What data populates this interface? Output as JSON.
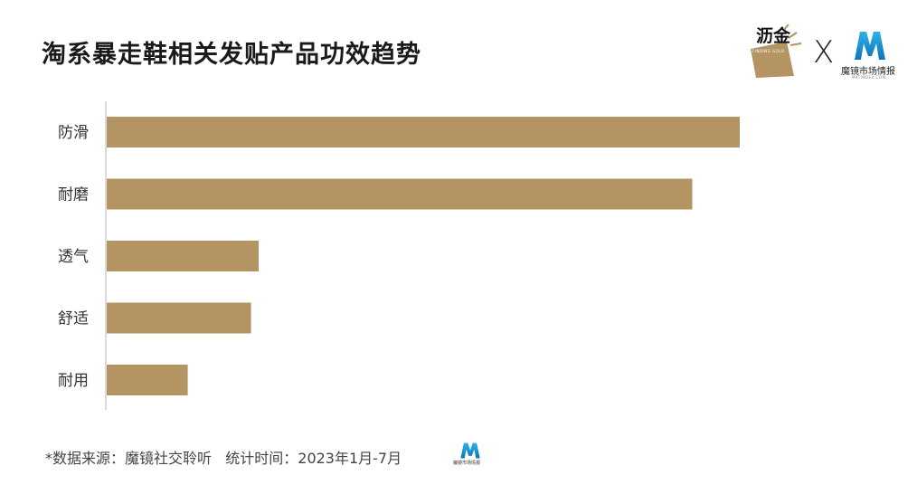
{
  "title": "淘系暴走鞋相关发贴产品功效趋势",
  "logos": {
    "partner_name": "沥金",
    "partner_sub": "FINDING GOLD",
    "separator": "X",
    "brand_name": "魔镜市场情报",
    "brand_sub": "MKTINDEX.COM"
  },
  "footer": {
    "source": "*数据来源：魔镜社交聆听   统计时间：2023年1月-7月"
  },
  "colors": {
    "bar": "#b39462",
    "axis": "#cfcfcf",
    "brand_blue": "#1f9fd4",
    "gold": "#b39462"
  },
  "chart_data": {
    "type": "bar",
    "orientation": "horizontal",
    "title": "淘系暴走鞋相关发贴产品功效趋势",
    "categories": [
      "防滑",
      "耐磨",
      "透气",
      "舒适",
      "耐用"
    ],
    "values": [
      100,
      92.5,
      24,
      22.8,
      12.8
    ],
    "xlim": [
      0,
      100
    ],
    "grid": false,
    "legend": "none"
  }
}
